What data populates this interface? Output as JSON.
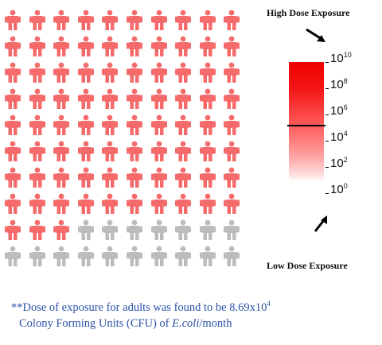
{
  "people_grid": {
    "rows": 10,
    "columns": 10,
    "highlighted_count": 83,
    "highlight_color": "#f56b6b",
    "neutral_color": "#bcbcbc",
    "icon": "person-icon"
  },
  "scale": {
    "high_label": "High Dose Exposure",
    "low_label": "Low Dose Exposure",
    "ticks": [
      {
        "base": "10",
        "exp": "10"
      },
      {
        "base": "10",
        "exp": "8"
      },
      {
        "base": "10",
        "exp": "6"
      },
      {
        "base": "10",
        "exp": "4"
      },
      {
        "base": "10",
        "exp": "2"
      },
      {
        "base": "10",
        "exp": "0"
      }
    ],
    "colors": {
      "high": "#ee0000",
      "low": "#ffffff"
    }
  },
  "footnote": {
    "prefix": "**Dose of exposure for adults was found to be 8.69x10",
    "exponent": "4",
    "line2_start": "Colony Forming Units (CFU) of ",
    "organism": "E.coli",
    "line2_end": "/month"
  }
}
